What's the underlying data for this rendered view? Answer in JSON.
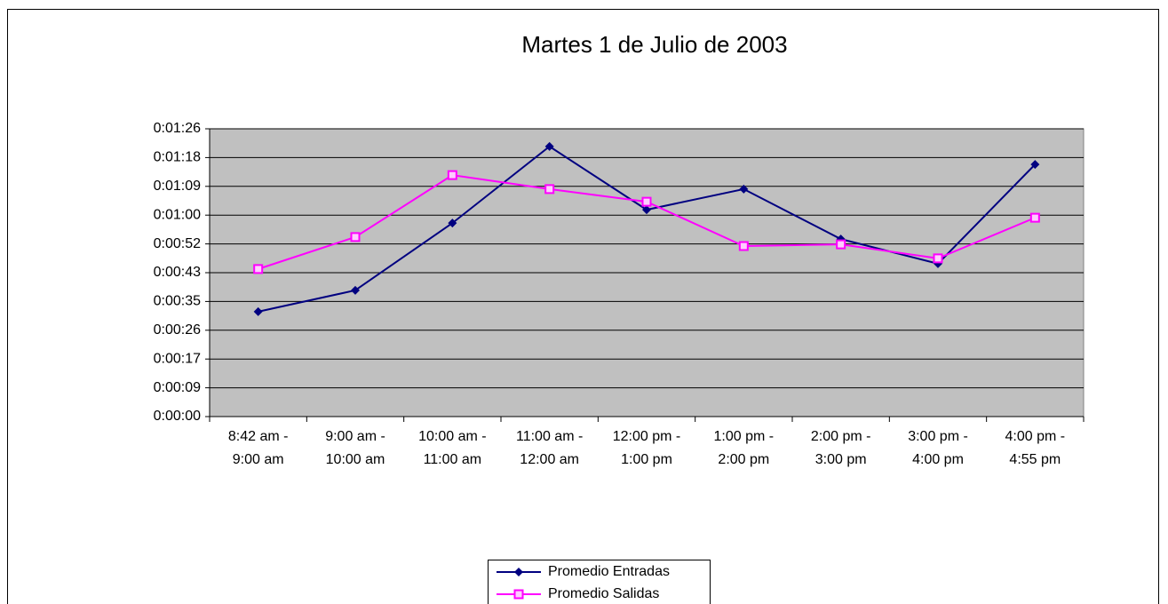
{
  "chart_data": {
    "type": "line",
    "title": "Martes 1 de Julio de 2003",
    "categories": [
      "8:42 am - 9:00 am",
      "9:00 am - 10:00 am",
      "10:00 am - 11:00 am",
      "11:00 am - 12:00 am",
      "12:00 pm - 1:00 pm",
      "1:00 pm - 2:00 pm",
      "2:00 pm - 3:00 pm",
      "3:00 pm - 4:00 pm",
      "4:00 pm - 4:55 pm"
    ],
    "series": [
      {
        "name": "Promedio Entradas",
        "color": "#000080",
        "marker": "diamond",
        "values": [
          31.5,
          37.9,
          58.1,
          81.1,
          62.1,
          68.3,
          53.3,
          45.9,
          75.7
        ]
      },
      {
        "name": "Promedio Salidas",
        "color": "#ff00ff",
        "marker": "square",
        "values": [
          44.3,
          53.9,
          72.5,
          68.3,
          64.5,
          51.2,
          51.7,
          47.5,
          59.7
        ]
      }
    ],
    "ylim": [
      0,
      86.4
    ],
    "yticks": [
      {
        "value": 0,
        "label": "0:00:00"
      },
      {
        "value": 8.64,
        "label": "0:00:09"
      },
      {
        "value": 17.28,
        "label": "0:00:17"
      },
      {
        "value": 25.92,
        "label": "0:00:26"
      },
      {
        "value": 34.56,
        "label": "0:00:35"
      },
      {
        "value": 43.2,
        "label": "0:00:43"
      },
      {
        "value": 51.84,
        "label": "0:00:52"
      },
      {
        "value": 60.48,
        "label": "0:01:00"
      },
      {
        "value": 69.12,
        "label": "0:01:09"
      },
      {
        "value": 77.76,
        "label": "0:01:18"
      },
      {
        "value": 86.4,
        "label": "0:01:26"
      }
    ],
    "grid": true,
    "legend": "bottom"
  }
}
